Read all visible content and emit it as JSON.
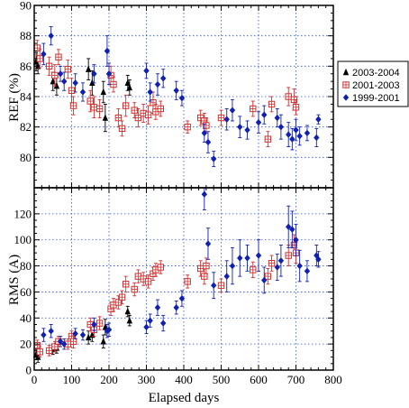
{
  "chart_data": [
    {
      "type": "scatter",
      "panel": "top",
      "ylabel": "REF (%)",
      "xlim": [
        0,
        800
      ],
      "ylim": [
        78,
        90
      ],
      "yticks": [
        80,
        82,
        84,
        86,
        88,
        90
      ],
      "grid": true,
      "series": [
        {
          "name": "2003-2004",
          "marker": "triangle",
          "color": "#000000",
          "points": [
            {
              "x": 5,
              "y": 86.3,
              "err": 0.6
            },
            {
              "x": 10,
              "y": 86.0,
              "err": 0.5
            },
            {
              "x": 50,
              "y": 85.0,
              "err": 0.6
            },
            {
              "x": 60,
              "y": 84.7,
              "err": 0.6
            },
            {
              "x": 145,
              "y": 85.8,
              "err": 0.7
            },
            {
              "x": 155,
              "y": 84.9,
              "err": 0.8
            },
            {
              "x": 185,
              "y": 84.3,
              "err": 0.7
            },
            {
              "x": 190,
              "y": 82.6,
              "err": 0.9
            },
            {
              "x": 250,
              "y": 84.9,
              "err": 0.5
            },
            {
              "x": 255,
              "y": 84.6,
              "err": 0.5
            }
          ]
        },
        {
          "name": "2001-2003",
          "marker": "square",
          "color": "#d03030",
          "points": [
            {
              "x": 8,
              "y": 87.2,
              "err": 0.5
            },
            {
              "x": 15,
              "y": 86.5,
              "err": 0.6
            },
            {
              "x": 40,
              "y": 86.0,
              "err": 0.6
            },
            {
              "x": 55,
              "y": 85.4,
              "err": 0.7
            },
            {
              "x": 65,
              "y": 86.6,
              "err": 0.5
            },
            {
              "x": 90,
              "y": 85.8,
              "err": 0.6
            },
            {
              "x": 100,
              "y": 84.4,
              "err": 0.8
            },
            {
              "x": 105,
              "y": 83.4,
              "err": 0.6
            },
            {
              "x": 150,
              "y": 83.7,
              "err": 0.7
            },
            {
              "x": 160,
              "y": 83.3,
              "err": 0.7
            },
            {
              "x": 175,
              "y": 83.2,
              "err": 0.6
            },
            {
              "x": 205,
              "y": 85.4,
              "err": 0.6
            },
            {
              "x": 212,
              "y": 84.8,
              "err": 0.5
            },
            {
              "x": 225,
              "y": 82.6,
              "err": 0.6
            },
            {
              "x": 235,
              "y": 81.9,
              "err": 0.5
            },
            {
              "x": 245,
              "y": 83.4,
              "err": 0.7
            },
            {
              "x": 268,
              "y": 83.1,
              "err": 0.5
            },
            {
              "x": 278,
              "y": 82.6,
              "err": 0.6
            },
            {
              "x": 292,
              "y": 82.9,
              "err": 0.6
            },
            {
              "x": 305,
              "y": 82.8,
              "err": 0.6
            },
            {
              "x": 318,
              "y": 83.6,
              "err": 0.7
            },
            {
              "x": 325,
              "y": 83.0,
              "err": 0.5
            },
            {
              "x": 338,
              "y": 83.2,
              "err": 0.5
            },
            {
              "x": 410,
              "y": 82.0,
              "err": 0.4
            },
            {
              "x": 445,
              "y": 82.6,
              "err": 0.5
            },
            {
              "x": 455,
              "y": 82.4,
              "err": 0.5
            },
            {
              "x": 460,
              "y": 82.1,
              "err": 0.5
            },
            {
              "x": 500,
              "y": 82.6,
              "err": 0.5
            },
            {
              "x": 585,
              "y": 83.2,
              "err": 0.5
            },
            {
              "x": 625,
              "y": 81.2,
              "err": 0.5
            },
            {
              "x": 635,
              "y": 83.5,
              "err": 0.5
            },
            {
              "x": 680,
              "y": 84.0,
              "err": 0.6
            },
            {
              "x": 695,
              "y": 83.8,
              "err": 0.7
            },
            {
              "x": 700,
              "y": 83.3,
              "err": 0.5
            }
          ]
        },
        {
          "name": "1999-2001",
          "marker": "diamond",
          "color": "#1020b0",
          "points": [
            {
              "x": 25,
              "y": 86.8,
              "err": 0.7
            },
            {
              "x": 45,
              "y": 88.0,
              "err": 0.6
            },
            {
              "x": 70,
              "y": 85.5,
              "err": 0.5
            },
            {
              "x": 80,
              "y": 85.0,
              "err": 0.6
            },
            {
              "x": 110,
              "y": 84.9,
              "err": 0.6
            },
            {
              "x": 130,
              "y": 84.3,
              "err": 0.6
            },
            {
              "x": 160,
              "y": 85.5,
              "err": 0.6
            },
            {
              "x": 195,
              "y": 87.0,
              "err": 1.0
            },
            {
              "x": 200,
              "y": 85.5,
              "err": 0.7
            },
            {
              "x": 300,
              "y": 85.7,
              "err": 0.5
            },
            {
              "x": 310,
              "y": 84.3,
              "err": 0.6
            },
            {
              "x": 330,
              "y": 84.8,
              "err": 0.7
            },
            {
              "x": 345,
              "y": 85.2,
              "err": 0.6
            },
            {
              "x": 380,
              "y": 84.4,
              "err": 0.6
            },
            {
              "x": 395,
              "y": 83.9,
              "err": 0.5
            },
            {
              "x": 455,
              "y": 81.6,
              "err": 0.6
            },
            {
              "x": 465,
              "y": 81.0,
              "err": 0.7
            },
            {
              "x": 480,
              "y": 79.9,
              "err": 0.5
            },
            {
              "x": 515,
              "y": 82.5,
              "err": 0.7
            },
            {
              "x": 530,
              "y": 83.1,
              "err": 0.7
            },
            {
              "x": 550,
              "y": 82.0,
              "err": 0.7
            },
            {
              "x": 570,
              "y": 81.8,
              "err": 0.6
            },
            {
              "x": 600,
              "y": 82.3,
              "err": 0.7
            },
            {
              "x": 615,
              "y": 82.8,
              "err": 0.6
            },
            {
              "x": 650,
              "y": 82.6,
              "err": 0.6
            },
            {
              "x": 660,
              "y": 82.0,
              "err": 0.8
            },
            {
              "x": 680,
              "y": 81.5,
              "err": 0.8
            },
            {
              "x": 690,
              "y": 81.2,
              "err": 0.7
            },
            {
              "x": 700,
              "y": 81.8,
              "err": 0.7
            },
            {
              "x": 710,
              "y": 81.4,
              "err": 0.6
            },
            {
              "x": 730,
              "y": 81.6,
              "err": 0.5
            },
            {
              "x": 755,
              "y": 81.3,
              "err": 0.6
            },
            {
              "x": 760,
              "y": 82.5,
              "err": 0.3
            }
          ]
        }
      ]
    },
    {
      "type": "scatter",
      "panel": "bottom",
      "xlabel": "Elapsed days",
      "ylabel": "RMS (A)",
      "xlim": [
        0,
        800
      ],
      "ylim": [
        0,
        140
      ],
      "xticks": [
        0,
        100,
        200,
        300,
        400,
        500,
        600,
        700,
        800
      ],
      "yticks": [
        0,
        20,
        40,
        60,
        80,
        100,
        120
      ],
      "grid": true,
      "series": [
        {
          "name": "2003-2004",
          "marker": "triangle",
          "color": "#000000",
          "points": [
            {
              "x": 5,
              "y": 12,
              "err": 4
            },
            {
              "x": 10,
              "y": 10,
              "err": 4
            },
            {
              "x": 50,
              "y": 16,
              "err": 4
            },
            {
              "x": 60,
              "y": 17,
              "err": 4
            },
            {
              "x": 145,
              "y": 25,
              "err": 5
            },
            {
              "x": 155,
              "y": 27,
              "err": 5
            },
            {
              "x": 185,
              "y": 22,
              "err": 5
            },
            {
              "x": 190,
              "y": 33,
              "err": 6
            },
            {
              "x": 250,
              "y": 45,
              "err": 4
            },
            {
              "x": 255,
              "y": 38,
              "err": 4
            }
          ]
        },
        {
          "name": "2001-2003",
          "marker": "square",
          "color": "#d03030",
          "points": [
            {
              "x": 8,
              "y": 19,
              "err": 4
            },
            {
              "x": 15,
              "y": 14,
              "err": 4
            },
            {
              "x": 40,
              "y": 15,
              "err": 4
            },
            {
              "x": 55,
              "y": 18,
              "err": 4
            },
            {
              "x": 65,
              "y": 22,
              "err": 4
            },
            {
              "x": 90,
              "y": 20,
              "err": 4
            },
            {
              "x": 100,
              "y": 26,
              "err": 4
            },
            {
              "x": 105,
              "y": 22,
              "err": 5
            },
            {
              "x": 150,
              "y": 35,
              "err": 5
            },
            {
              "x": 160,
              "y": 31,
              "err": 5
            },
            {
              "x": 175,
              "y": 36,
              "err": 5
            },
            {
              "x": 205,
              "y": 47,
              "err": 5
            },
            {
              "x": 212,
              "y": 50,
              "err": 5
            },
            {
              "x": 225,
              "y": 52,
              "err": 5
            },
            {
              "x": 235,
              "y": 56,
              "err": 5
            },
            {
              "x": 245,
              "y": 66,
              "err": 6
            },
            {
              "x": 268,
              "y": 62,
              "err": 5
            },
            {
              "x": 278,
              "y": 72,
              "err": 5
            },
            {
              "x": 292,
              "y": 70,
              "err": 5
            },
            {
              "x": 305,
              "y": 68,
              "err": 5
            },
            {
              "x": 318,
              "y": 74,
              "err": 5
            },
            {
              "x": 325,
              "y": 77,
              "err": 5
            },
            {
              "x": 338,
              "y": 79,
              "err": 5
            },
            {
              "x": 410,
              "y": 68,
              "err": 5
            },
            {
              "x": 445,
              "y": 78,
              "err": 6
            },
            {
              "x": 455,
              "y": 72,
              "err": 6
            },
            {
              "x": 460,
              "y": 80,
              "err": 6
            },
            {
              "x": 500,
              "y": 65,
              "err": 5
            },
            {
              "x": 585,
              "y": 77,
              "err": 6
            },
            {
              "x": 625,
              "y": 72,
              "err": 6
            },
            {
              "x": 635,
              "y": 82,
              "err": 6
            },
            {
              "x": 680,
              "y": 88,
              "err": 8
            },
            {
              "x": 695,
              "y": 96,
              "err": 8
            },
            {
              "x": 700,
              "y": 90,
              "err": 8
            }
          ]
        },
        {
          "name": "1999-2001",
          "marker": "diamond",
          "color": "#1020b0",
          "points": [
            {
              "x": 25,
              "y": 27,
              "err": 5
            },
            {
              "x": 45,
              "y": 30,
              "err": 5
            },
            {
              "x": 70,
              "y": 22,
              "err": 4
            },
            {
              "x": 80,
              "y": 20,
              "err": 4
            },
            {
              "x": 110,
              "y": 28,
              "err": 4
            },
            {
              "x": 130,
              "y": 27,
              "err": 4
            },
            {
              "x": 160,
              "y": 35,
              "err": 5
            },
            {
              "x": 195,
              "y": 30,
              "err": 5
            },
            {
              "x": 200,
              "y": 31,
              "err": 5
            },
            {
              "x": 300,
              "y": 33,
              "err": 5
            },
            {
              "x": 310,
              "y": 38,
              "err": 5
            },
            {
              "x": 330,
              "y": 48,
              "err": 6
            },
            {
              "x": 345,
              "y": 36,
              "err": 6
            },
            {
              "x": 380,
              "y": 48,
              "err": 5
            },
            {
              "x": 395,
              "y": 55,
              "err": 6
            },
            {
              "x": 455,
              "y": 135,
              "err": 12
            },
            {
              "x": 465,
              "y": 97,
              "err": 12
            },
            {
              "x": 480,
              "y": 65,
              "err": 10
            },
            {
              "x": 515,
              "y": 72,
              "err": 12
            },
            {
              "x": 530,
              "y": 80,
              "err": 14
            },
            {
              "x": 550,
              "y": 86,
              "err": 14
            },
            {
              "x": 570,
              "y": 86,
              "err": 10
            },
            {
              "x": 600,
              "y": 88,
              "err": 12
            },
            {
              "x": 615,
              "y": 69,
              "err": 10
            },
            {
              "x": 650,
              "y": 79,
              "err": 10
            },
            {
              "x": 660,
              "y": 84,
              "err": 12
            },
            {
              "x": 680,
              "y": 110,
              "err": 16
            },
            {
              "x": 690,
              "y": 108,
              "err": 14
            },
            {
              "x": 700,
              "y": 100,
              "err": 12
            },
            {
              "x": 710,
              "y": 80,
              "err": 12
            },
            {
              "x": 730,
              "y": 76,
              "err": 8
            },
            {
              "x": 755,
              "y": 88,
              "err": 8
            },
            {
              "x": 760,
              "y": 85,
              "err": 6
            }
          ]
        }
      ]
    }
  ],
  "legend": {
    "placement": "right",
    "entries": [
      "2003-2004",
      "2001-2003",
      "1999-2001"
    ]
  }
}
